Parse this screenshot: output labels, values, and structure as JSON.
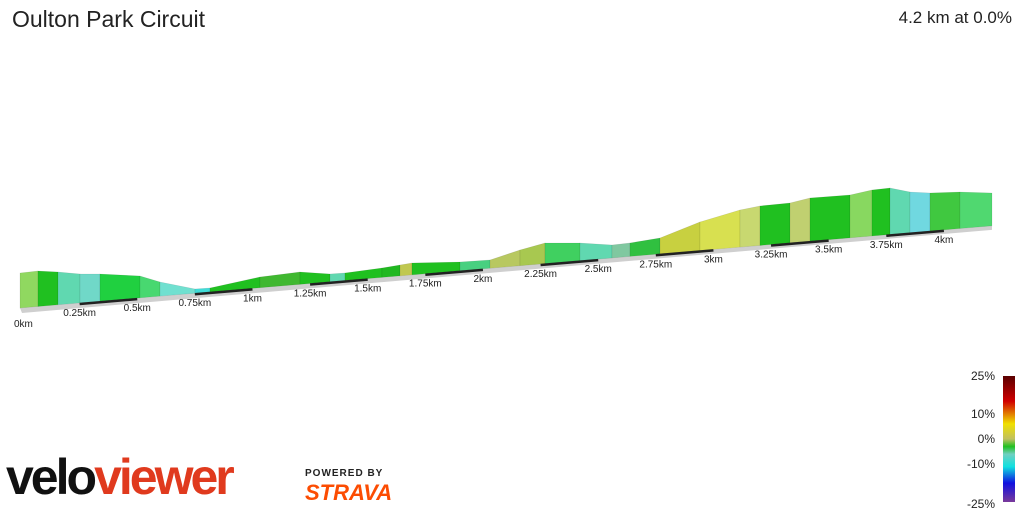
{
  "header": {
    "title": "Oulton Park Circuit",
    "summary": "4.2 km at 0.0%"
  },
  "chart_data": {
    "type": "area",
    "title": "Oulton Park Circuit",
    "x_ticks": [
      "0km",
      "0.25km",
      "0.5km",
      "0.75km",
      "1km",
      "1.25km",
      "1.5km",
      "1.75km",
      "2km",
      "2.25km",
      "2.5km",
      "2.75km",
      "3km",
      "3.25km",
      "3.5km",
      "3.75km",
      "4km"
    ],
    "xlim": [
      0,
      4.2
    ],
    "color_scale": {
      "labels": [
        "25%",
        "10%",
        "0%",
        "-10%",
        "-25%"
      ],
      "values": [
        25,
        10,
        0,
        -10,
        -25
      ],
      "colors": [
        "#5a0000",
        "#d00000",
        "#f0e000",
        "#20c020",
        "#10e0e0",
        "#1010e0",
        "#7a3a9a"
      ]
    }
  },
  "branding": {
    "logo_velo": "velo",
    "logo_viewer": "viewer",
    "powered_by": "POWERED BY",
    "strava": "STRAVA"
  }
}
